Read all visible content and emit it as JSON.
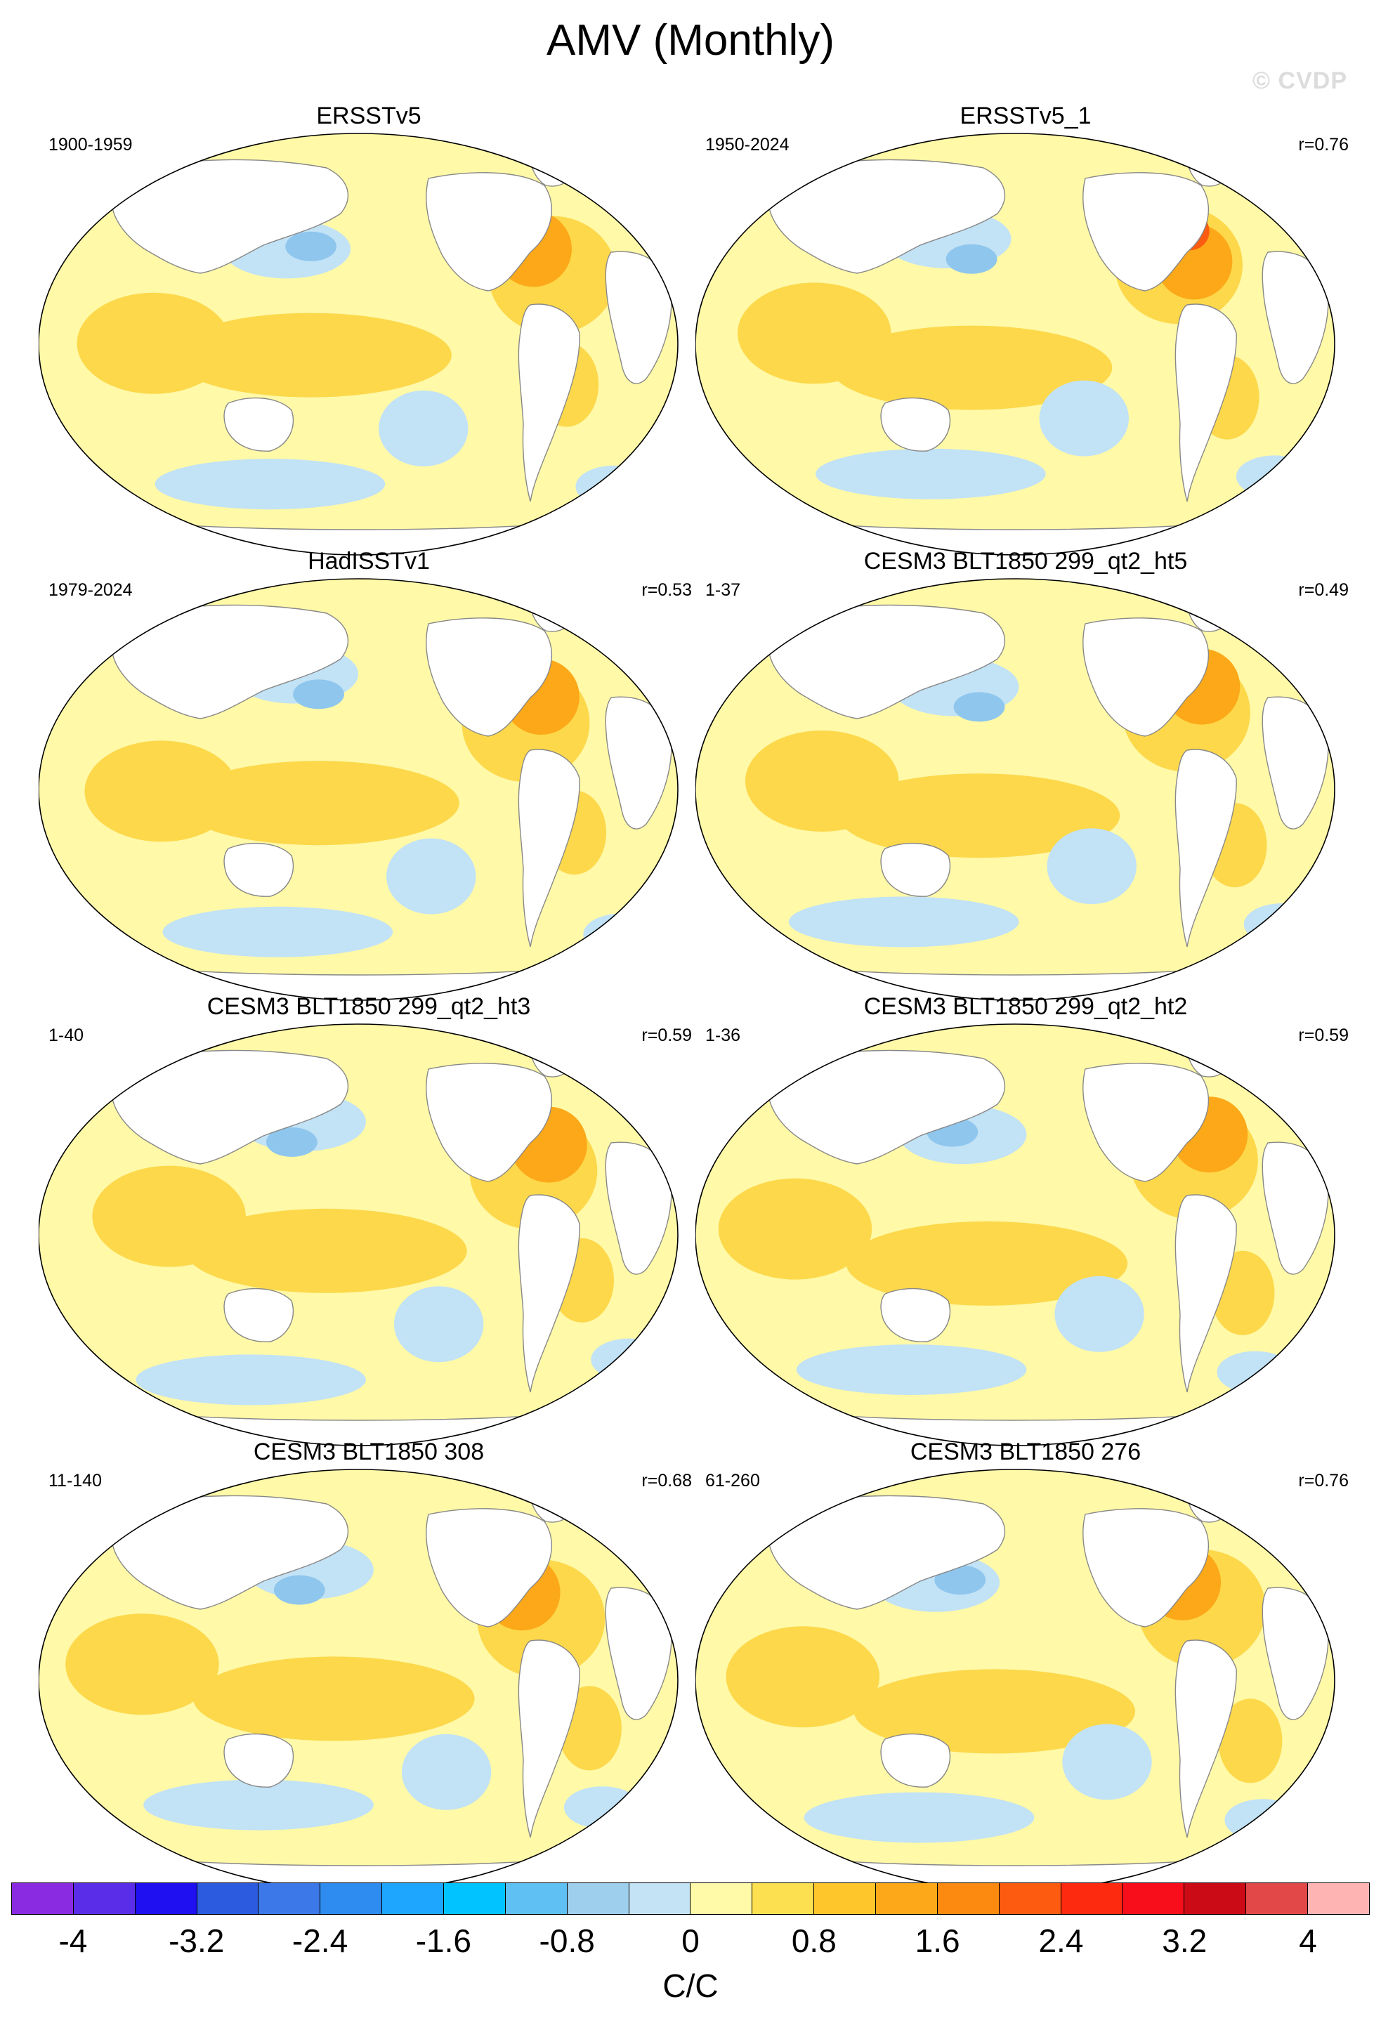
{
  "title": "AMV (Monthly)",
  "watermark": "© CVDP",
  "panels": [
    {
      "title": "ERSSTv5",
      "period": "1900-1959",
      "corr": ""
    },
    {
      "title": "ERSSTv5_1",
      "period": "1950-2024",
      "corr": "r=0.76"
    },
    {
      "title": "HadISSTv1",
      "period": "1979-2024",
      "corr": "r=0.53"
    },
    {
      "title": "CESM3 BLT1850 299_qt2_ht5",
      "period": "1-37",
      "corr": "r=0.49"
    },
    {
      "title": "CESM3 BLT1850 299_qt2_ht3",
      "period": "1-40",
      "corr": "r=0.59"
    },
    {
      "title": "CESM3 BLT1850 299_qt2_ht2",
      "period": "1-36",
      "corr": "r=0.59"
    },
    {
      "title": "CESM3 BLT1850 308",
      "period": "11-140",
      "corr": "r=0.68"
    },
    {
      "title": "CESM3 BLT1850 276",
      "period": "61-260",
      "corr": "r=0.76"
    }
  ],
  "colorbar": {
    "colors": [
      "#8a2be2",
      "#5a2ee8",
      "#1e10f0",
      "#2d5be0",
      "#3c78e8",
      "#2e8cf0",
      "#1ea6ff",
      "#00c3ff",
      "#5fc0f4",
      "#9ed0ee",
      "#c4e4f6",
      "#fffaa8",
      "#fde050",
      "#fec62a",
      "#fca818",
      "#fd8a10",
      "#fd5c10",
      "#fd2a10",
      "#f80d1a",
      "#cb0b16",
      "#e24848",
      "#ffb4b4"
    ],
    "tick_labels": [
      "-4",
      "-3.2",
      "-2.4",
      "-1.6",
      "-0.8",
      "0",
      "0.8",
      "1.6",
      "2.4",
      "3.2",
      "4"
    ],
    "units": "C/C"
  },
  "map_colors": {
    "cold": "#c2e2f5",
    "cold_strong": "#8ec6ee",
    "neutral": "#fff9a8",
    "warm": "#fdd84a",
    "warm_strong": "#fca818",
    "hot": "#fd5c10",
    "land": "#ffffff",
    "coast": "#888888"
  }
}
